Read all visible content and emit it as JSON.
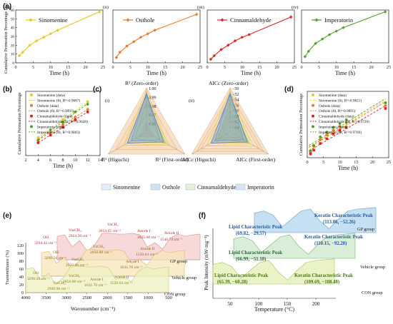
{
  "panel_labels": [
    "(a)",
    "(b)",
    "(c)",
    "(d)",
    "(e)",
    "(f)"
  ],
  "colors": {
    "sinomenine": "#e8c822",
    "osthole": "#e67a2a",
    "cinnamaldehyde": "#e02020",
    "imperatorin": "#55a02a",
    "frame_legend_border": "#222222"
  },
  "chart_data": [
    {
      "panel": "(a)",
      "type": "line",
      "ylabel": "Cumulative Permeation Percentage (%)",
      "subplots": [
        {
          "roman": "(i)",
          "name": "Sinomenine",
          "xlabel": "Time (h)",
          "x": [
            1,
            2,
            4,
            6,
            8,
            10,
            12,
            24
          ],
          "y": [
            8,
            12,
            20,
            25,
            29,
            33,
            37,
            58
          ],
          "xlim": [
            0,
            25
          ],
          "ylim": [
            0,
            60
          ],
          "yticks": [
            "0",
            "10",
            "20",
            "30",
            "40",
            "50",
            "60"
          ],
          "xticks": [
            "0",
            "5",
            "10",
            "15",
            "20",
            "25"
          ]
        },
        {
          "roman": "(ii)",
          "name": "Osthole",
          "xlabel": "Time (h)",
          "x": [
            1,
            2,
            4,
            6,
            8,
            10,
            12,
            24
          ],
          "y": [
            6,
            12,
            19,
            24,
            29,
            33,
            37,
            55
          ],
          "xlim": [
            0,
            25
          ],
          "ylim": [
            0,
            60
          ],
          "xticks": [
            "0",
            "5",
            "10",
            "15",
            "20",
            "25"
          ]
        },
        {
          "roman": "(iii)",
          "name": "Cinnamaldehyde",
          "xlabel": "Time (h)",
          "x": [
            1,
            2,
            4,
            6,
            8,
            10,
            12,
            24
          ],
          "y": [
            4,
            8,
            15,
            20,
            25,
            29,
            32,
            52
          ],
          "xlim": [
            0,
            25
          ],
          "ylim": [
            0,
            60
          ],
          "xticks": [
            "0",
            "5",
            "10",
            "15",
            "20",
            "25"
          ]
        },
        {
          "roman": "(iv)",
          "name": "Imperatorin",
          "xlabel": "Time (h)",
          "x": [
            1,
            2,
            4,
            6,
            8,
            10,
            12,
            24
          ],
          "y": [
            7,
            13,
            22,
            27,
            32,
            36,
            40,
            58
          ],
          "xlim": [
            0,
            25
          ],
          "ylim": [
            0,
            60
          ],
          "xticks": [
            "0",
            "5",
            "10",
            "15",
            "20",
            "25"
          ]
        }
      ]
    },
    {
      "panel": "(b)",
      "type": "scatter",
      "xlabel": "Time (h)",
      "ylabel": "Cumulative Permeation Percentage",
      "xlim": [
        2,
        14
      ],
      "ylim": [
        0.1,
        0.35
      ],
      "xticks": [
        "2",
        "4",
        "6",
        "8",
        "10",
        "12",
        "14"
      ],
      "legend": [
        "Sinomenine (data)",
        "Sinomenine (fit, R²=0.9687)",
        "Osthole (data)",
        "Osthole (fit, R²=0.9993)",
        "Cinnamaldehyde (data)",
        "Cinnamaldehyde (fit, R²=0.9628)",
        "Imperatorin (data)",
        "Imperatorin (fit, R²=0.9883)"
      ],
      "series": [
        {
          "name": "Sinomenine",
          "x": [
            4,
            6,
            8,
            10,
            12
          ],
          "y": [
            0.17,
            0.2,
            0.24,
            0.27,
            0.31
          ]
        },
        {
          "name": "Osthole",
          "x": [
            4,
            6,
            8,
            10,
            12
          ],
          "y": [
            0.16,
            0.19,
            0.22,
            0.25,
            0.28
          ]
        },
        {
          "name": "Cinnamaldehyde",
          "x": [
            4,
            6,
            8,
            10,
            12
          ],
          "y": [
            0.15,
            0.18,
            0.21,
            0.24,
            0.27
          ]
        },
        {
          "name": "Imperatorin",
          "x": [
            4,
            6,
            8,
            10,
            12
          ],
          "y": [
            0.16,
            0.2,
            0.23,
            0.27,
            0.3
          ]
        }
      ]
    },
    {
      "panel": "(c)",
      "type": "radar",
      "axes_left": [
        "R² (Zero-order)",
        "R² (First-order)",
        "R² (Higuchi)"
      ],
      "rticks_left": [
        "1.00",
        "0.99",
        "0.98",
        "0.97",
        "0.96"
      ],
      "axes_right": [
        "AICc (Zero-order)",
        "AICc (First-order)",
        "AICc (Higuchi)"
      ],
      "rticks_right": [
        "−50",
        "−52",
        "−54",
        "−56",
        "−58",
        "−60",
        "−62",
        "−64"
      ],
      "roman": [
        "(i)",
        "(ii)"
      ],
      "legend": [
        "Sinomenine",
        "Osthole",
        "Cinnamaldehyde",
        "Imperatorin"
      ]
    },
    {
      "panel": "(d)",
      "type": "scatter",
      "xlabel": "Time (h)",
      "ylabel": "Cumulative Permeation Percentage",
      "xlim": [
        0,
        25
      ],
      "ylim": [
        0,
        0.7
      ],
      "xticks": [
        "0",
        "5",
        "10",
        "15",
        "20",
        "25"
      ],
      "legend": [
        "Sinomenine (data)",
        "Sinomenine (fit, R²=0.9821)",
        "Osthole (data)",
        "Osthole (fit, R²=0.9895)",
        "Cinnamaldehyde (data)",
        "Cinnamaldehyde (fit, R²=0.9728)",
        "Imperatorin (data)",
        "Imperatorin (fit, R²=0.9769)"
      ],
      "series": [
        {
          "name": "Sinomenine",
          "x": [
            1,
            2,
            4,
            6,
            8,
            10,
            12,
            24
          ],
          "y": [
            0.08,
            0.12,
            0.2,
            0.25,
            0.29,
            0.33,
            0.37,
            0.58
          ]
        },
        {
          "name": "Osthole",
          "x": [
            1,
            2,
            4,
            6,
            8,
            10,
            12,
            24
          ],
          "y": [
            0.06,
            0.12,
            0.19,
            0.24,
            0.29,
            0.33,
            0.37,
            0.55
          ]
        },
        {
          "name": "Cinnamaldehyde",
          "x": [
            1,
            2,
            4,
            6,
            8,
            10,
            12,
            24
          ],
          "y": [
            0.04,
            0.08,
            0.15,
            0.2,
            0.25,
            0.29,
            0.32,
            0.52
          ]
        },
        {
          "name": "Imperatorin",
          "x": [
            1,
            2,
            4,
            6,
            8,
            10,
            12,
            24
          ],
          "y": [
            0.07,
            0.13,
            0.22,
            0.27,
            0.32,
            0.36,
            0.4,
            0.58
          ]
        }
      ]
    },
    {
      "panel": "(e)",
      "type": "area",
      "xlabel": "Wavenumber (cm⁻¹)",
      "ylabel": "Transmittance (%)",
      "xticks": [
        "4000",
        "3500",
        "3000",
        "2500",
        "2000",
        "1500",
        "1000",
        "500"
      ],
      "yticks": [
        "0",
        "20",
        "40",
        "60",
        "80",
        "100",
        "120"
      ],
      "groups": [
        "GP group",
        "Vehicle group",
        "CON group"
      ],
      "annotations": [
        "VaCH₂",
        "2854.65 cm⁻¹",
        "VasCH₂",
        "2924.20 cm⁻¹",
        "OH",
        "3294.42 cm⁻¹",
        "Amide I",
        "1635.66 cm⁻¹",
        "Amide II",
        "1546.74 cm⁻¹",
        "VsCH₂",
        "2850.88 cm⁻¹",
        "Amide II",
        "1550.64 cm⁻¹",
        "OH",
        "3290.56 cm⁻¹",
        "VasCH₂",
        "2920.90 cm⁻¹",
        "Amide I",
        "1631.70 cm⁻¹",
        "VsCH₂",
        "2850.88 cm⁻¹",
        "OH",
        "3290.56 cm⁻¹",
        "VasCH₂",
        "2920.90 cm⁻¹",
        "Amide I",
        "1631.70 cm⁻¹",
        "Amide II",
        "1550.64 cm⁻¹"
      ]
    },
    {
      "panel": "(f)",
      "type": "area",
      "xlabel": "Temperature (°C)",
      "ylabel": "Peak Intensity (mW·mg⁻¹)",
      "xticks": [
        "50",
        "100",
        "150",
        "200"
      ],
      "groups": [
        "GP group",
        "Vehicle group",
        "CON group"
      ],
      "annotations": [
        {
          "name": "Keratin Characteristic Peak",
          "value": "(113.06, −52.26)"
        },
        {
          "name": "Lipid Characteristic Peak",
          "value": "(69.82, −29.57)"
        },
        {
          "name": "Keratin Characteristic Peak",
          "value": "(110.15, −92.20)"
        },
        {
          "name": "Lipid Characteristic Peak",
          "value": "(66.99, −51.18)"
        },
        {
          "name": "Keratin Characteristic Peak",
          "value": "(109.69, −108.48)"
        },
        {
          "name": "Lipid Characteristic Peak",
          "value": "(65.39, −60.28)"
        }
      ]
    }
  ]
}
